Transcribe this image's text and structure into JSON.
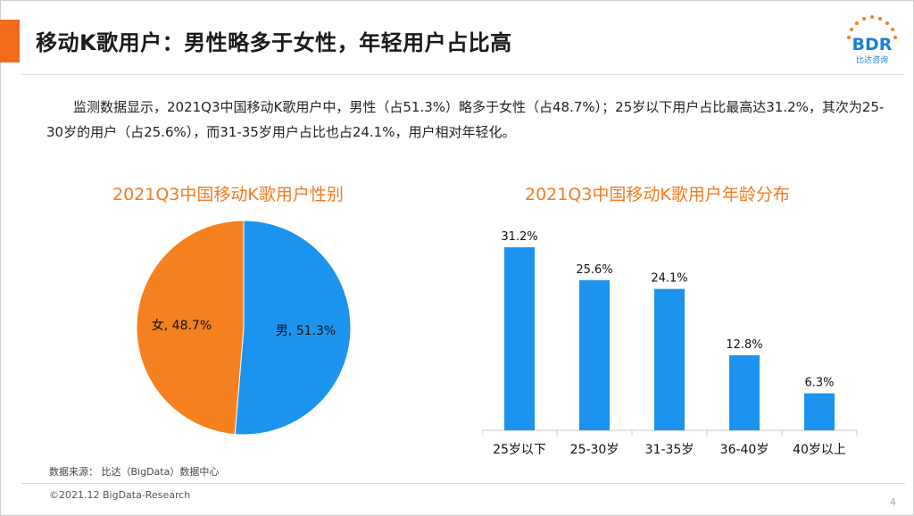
{
  "header": {
    "title": "移动K歌用户：男性略多于女性，年轻用户占比高",
    "accent_color": "#f26b1d",
    "logo_text": "BDR",
    "logo_subtext": "比达咨询"
  },
  "summary": "监测数据显示，2021Q3中国移动K歌用户中，男性（占51.3%）略多于女性（占48.7%）；25岁以下用户占比最高达31.2%，其次为25-30岁的用户（占25.6%），而31-35岁用户占比也占24.1%，用户相对年轻化。",
  "chart_data": [
    {
      "type": "pie",
      "title": "2021Q3中国移动K歌用户性别",
      "categories": [
        "男",
        "女"
      ],
      "values": [
        51.3,
        48.7
      ],
      "labels": [
        "男, 51.3%",
        "女, 48.7%"
      ],
      "colors": [
        "#1c93ee",
        "#f48020"
      ]
    },
    {
      "type": "bar",
      "title": "2021Q3中国移动K歌用户年龄分布",
      "categories": [
        "25岁以下",
        "25-30岁",
        "31-35岁",
        "36-40岁",
        "40岁以上"
      ],
      "values": [
        31.2,
        25.6,
        24.1,
        12.8,
        6.3
      ],
      "value_labels": [
        "31.2%",
        "25.6%",
        "24.1%",
        "12.8%",
        "6.3%"
      ],
      "ylim": [
        0,
        35
      ],
      "color": "#1c93ee"
    }
  ],
  "footer": {
    "source": "数据来源： 比达（BigData）数据中心",
    "copyright": "©2021.12 BigData-Research",
    "page_number": "4"
  }
}
